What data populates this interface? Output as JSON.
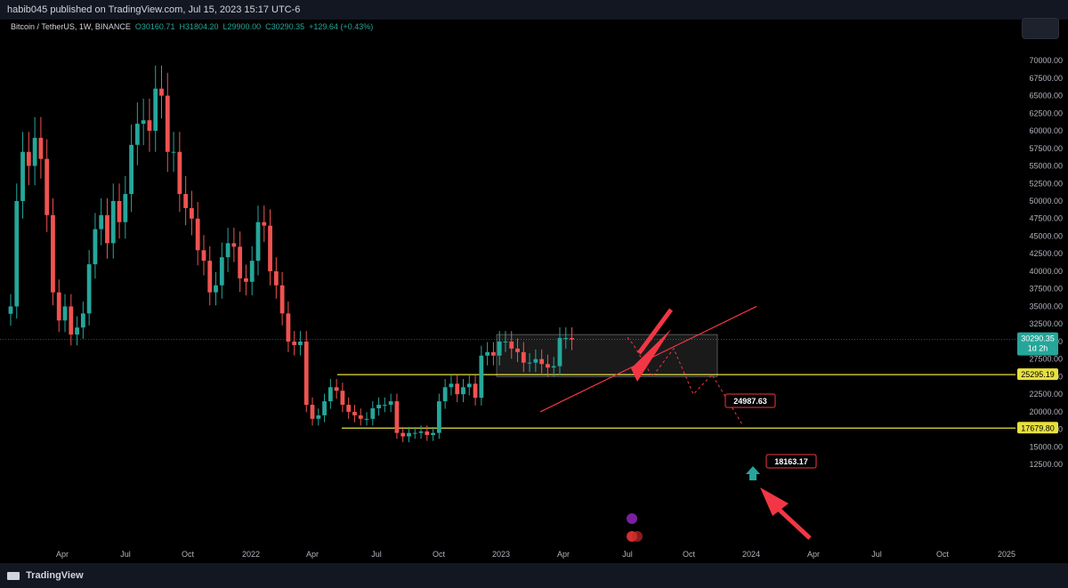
{
  "header": {
    "publish_line": "habib045 published on TradingView.com, Jul 15, 2023 15:17 UTC-6"
  },
  "legend": {
    "symbol": "Bitcoin / TetherUS, 1W, BINANCE",
    "open": "O30160.71",
    "high": "H31804.20",
    "low": "L29900.00",
    "close": "C30290.35",
    "change": "+129.64 (+0.43%)"
  },
  "footer": {
    "brand": "TradingView"
  },
  "colors": {
    "background": "#000000",
    "up": "#26a69a",
    "down": "#ef5350",
    "annotation": "#f23645",
    "level": "#e8e040",
    "price_tag": "#26a69a"
  },
  "chart_data": {
    "type": "candlestick",
    "title": "",
    "interval": "1W",
    "ylim": [
      10500,
      71000
    ],
    "x_ticks": [
      "Apr",
      "Jul",
      "Oct",
      "2022",
      "Apr",
      "Jul",
      "Oct",
      "2023",
      "Apr",
      "Jul",
      "Oct",
      "2024",
      "Apr",
      "Jul",
      "Oct",
      "2025"
    ],
    "y_ticks": [
      "12500.00",
      "15000.00",
      "17500.00",
      "20000.00",
      "22500.00",
      "25000.00",
      "27500.00",
      "30000.00",
      "32500.00",
      "35000.00",
      "37500.00",
      "40000.00",
      "42500.00",
      "45000.00",
      "47500.00",
      "50000.00",
      "52500.00",
      "55000.00",
      "57500.00",
      "60000.00",
      "62500.00",
      "65000.00",
      "67500.00",
      "70000.00"
    ],
    "closes": [
      35000,
      50000,
      57000,
      55000,
      59000,
      56000,
      48000,
      37000,
      33000,
      35000,
      31000,
      32000,
      34000,
      41000,
      46000,
      48000,
      44000,
      50000,
      47000,
      51000,
      58000,
      61000,
      61500,
      60000,
      66000,
      65000,
      57000,
      57000,
      51000,
      49000,
      47500,
      43000,
      41500,
      37000,
      38000,
      42000,
      44000,
      43500,
      39000,
      38500,
      41500,
      47000,
      46500,
      40000,
      38000,
      34000,
      30000,
      29500,
      30000,
      21000,
      19000,
      19500,
      21500,
      23500,
      23000,
      21000,
      20000,
      19500,
      19000,
      19000,
      20500,
      21000,
      21000,
      21500,
      17000,
      16500,
      17000,
      17000,
      17200,
      16700,
      17000,
      21500,
      23500,
      24000,
      22500,
      23500,
      24000,
      22000,
      28000,
      28500,
      28000,
      30000,
      30000,
      29000,
      28500,
      27000,
      27000,
      27500,
      26800,
      26300,
      26500,
      30500,
      30500,
      30290.35
    ],
    "current_price": "30290.35",
    "countdown": "1d 2h",
    "levels": [
      {
        "value": 25295.19,
        "label": "25295.19"
      },
      {
        "value": 17679.8,
        "label": "17679.80"
      }
    ],
    "projection_labels": [
      "24987.63",
      "18163.17"
    ]
  }
}
